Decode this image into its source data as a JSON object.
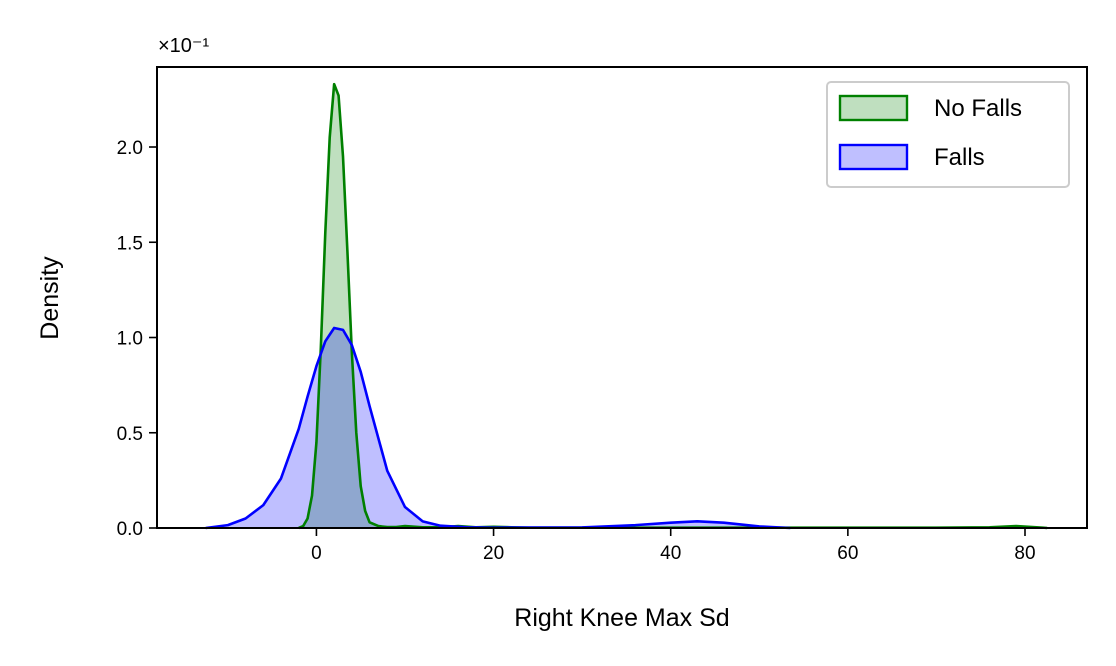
{
  "chart_data": {
    "type": "area",
    "xlabel": "Right Knee Max Sd",
    "ylabel": "Density",
    "y_multiplier_label": "×10⁻¹",
    "xlim": [
      -18,
      87
    ],
    "ylim": [
      0,
      2.42
    ],
    "x_ticks": [
      0,
      20,
      40,
      60,
      80
    ],
    "x_tick_labels": [
      "0",
      "20",
      "40",
      "60",
      "80"
    ],
    "y_ticks": [
      0.0,
      0.5,
      1.0,
      1.5,
      2.0
    ],
    "y_tick_labels": [
      "0.0",
      "0.5",
      "1.0",
      "1.5",
      "2.0"
    ],
    "grid": false,
    "legend": {
      "placement": "top-right",
      "entries": [
        "No Falls",
        "Falls"
      ]
    },
    "series": [
      {
        "name": "No Falls",
        "color": "#008000",
        "fill": "#008000",
        "fill_opacity": 0.25,
        "x": [
          -2,
          -1.5,
          -1,
          -0.5,
          0,
          0.5,
          1,
          1.5,
          2,
          2.5,
          3,
          3.5,
          4,
          4.5,
          5,
          5.5,
          6,
          7,
          8,
          9,
          10,
          12,
          14,
          16,
          18,
          20,
          22,
          24,
          30,
          40,
          50,
          60,
          70,
          76,
          79,
          82,
          82.5
        ],
        "y": [
          0.0,
          0.01,
          0.05,
          0.17,
          0.45,
          0.95,
          1.55,
          2.05,
          2.33,
          2.27,
          1.95,
          1.45,
          0.92,
          0.5,
          0.22,
          0.09,
          0.03,
          0.01,
          0.005,
          0.005,
          0.01,
          0.004,
          0.004,
          0.01,
          0.004,
          0.006,
          0.004,
          0.002,
          0.002,
          0.002,
          0.002,
          0.002,
          0.002,
          0.004,
          0.01,
          0.002,
          0.0
        ]
      },
      {
        "name": "Falls",
        "color": "#0000ff",
        "fill": "#0000ff",
        "fill_opacity": 0.25,
        "x": [
          -12.5,
          -10,
          -8,
          -6,
          -4,
          -2,
          -1,
          0,
          1,
          2,
          3,
          4,
          5,
          6,
          8,
          10,
          12,
          14,
          17,
          20,
          30,
          36,
          40,
          43,
          46,
          50,
          53.5
        ],
        "y": [
          0.0,
          0.015,
          0.05,
          0.12,
          0.26,
          0.52,
          0.69,
          0.85,
          0.98,
          1.05,
          1.04,
          0.96,
          0.82,
          0.64,
          0.3,
          0.11,
          0.035,
          0.012,
          0.004,
          0.002,
          0.003,
          0.015,
          0.028,
          0.035,
          0.028,
          0.008,
          0.0
        ]
      }
    ]
  }
}
